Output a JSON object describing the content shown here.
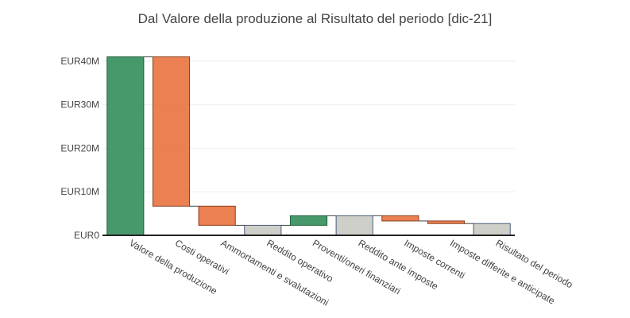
{
  "chart_data": {
    "type": "waterfall",
    "title": "Dal Valore della produzione al Risultato del periodo [dic-21]",
    "xlabel": "",
    "ylabel": "",
    "ylim": [
      0,
      41000000
    ],
    "y_ticks": [
      {
        "value": 0,
        "label": "EUR0"
      },
      {
        "value": 10000000,
        "label": "EUR10M"
      },
      {
        "value": 20000000,
        "label": "EUR20M"
      },
      {
        "value": 30000000,
        "label": "EUR30M"
      },
      {
        "value": 40000000,
        "label": "EUR40M"
      }
    ],
    "grid": true,
    "legend": "none",
    "colors": {
      "increase": "#2e8b57",
      "decrease": "#e8703a",
      "total": "#cfcfc9",
      "connector": "#444444"
    },
    "categories": [
      "Valore della produzione",
      "Costi operativi",
      "Ammortamenti e svalutazioni",
      "Reddito operativo",
      "Proventi/oneri finanziari",
      "Reddito ante imposte",
      "Imposte correnti",
      "Imposte differite e anticipate",
      "Risultato del periodo"
    ],
    "measures": [
      "relative",
      "relative",
      "relative",
      "total",
      "relative",
      "total",
      "relative",
      "relative",
      "total"
    ],
    "values": [
      41000000,
      -34300000,
      -4400000,
      2300000,
      2200000,
      4500000,
      -1200000,
      -600000,
      2700000
    ]
  }
}
